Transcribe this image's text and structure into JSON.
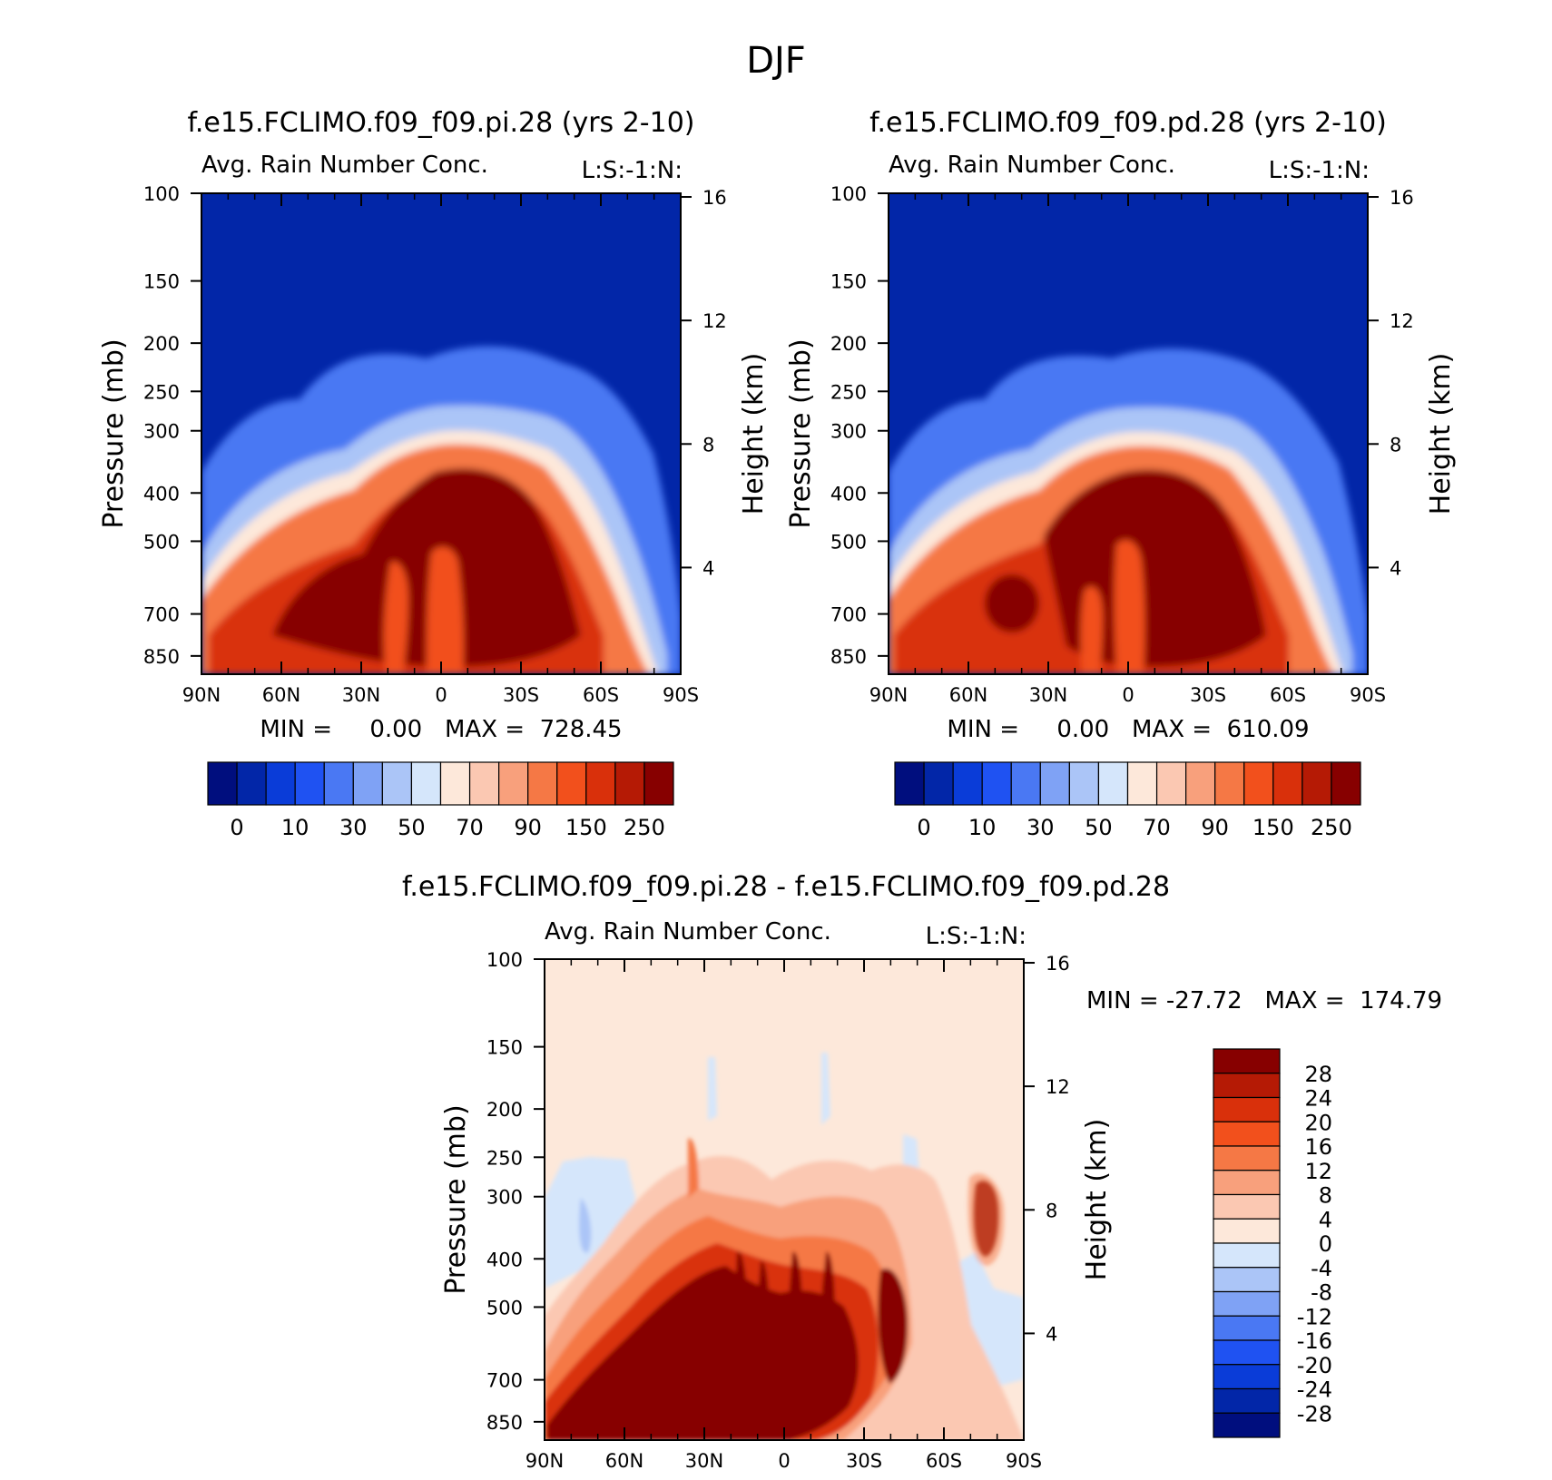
{
  "figure_title": "DJF",
  "chart_data": [
    {
      "type": "heatmap",
      "title": "f.e15.FCLIMO.f09_f09.pi.28 (yrs 2-10)",
      "subtitle_left": "Avg. Rain Number Conc.",
      "subtitle_right": "L:S:-1:N:",
      "ylabel": "Pressure (mb)",
      "ylabel_right": "Height (km)",
      "x_ticks": [
        "90N",
        "60N",
        "30N",
        "0",
        "30S",
        "60S",
        "90S"
      ],
      "y_ticks": [
        "100",
        "150",
        "200",
        "250",
        "300",
        "400",
        "500",
        "700",
        "850"
      ],
      "y_ticks_right": [
        "16",
        "12",
        "8",
        "4"
      ],
      "ylim": [
        100,
        925
      ],
      "stats": "MIN =     0.00   MAX =  728.45",
      "colorbar": {
        "orientation": "horizontal",
        "colors": [
          "#000e7e",
          "#0226a8",
          "#0a3cd8",
          "#1f52f2",
          "#4a78f3",
          "#7fa2f5",
          "#abc5f7",
          "#d5e6fb",
          "#fde8da",
          "#fbc8b2",
          "#f8a07c",
          "#f57845",
          "#f2501c",
          "#d9300b",
          "#b51a05",
          "#870000"
        ],
        "labels": [
          "0",
          "10",
          "30",
          "50",
          "70",
          "90",
          "150",
          "250"
        ]
      }
    },
    {
      "type": "heatmap",
      "title": "f.e15.FCLIMO.f09_f09.pd.28 (yrs 2-10)",
      "subtitle_left": "Avg. Rain Number Conc.",
      "subtitle_right": "L:S:-1:N:",
      "ylabel": "Pressure (mb)",
      "ylabel_right": "Height (km)",
      "x_ticks": [
        "90N",
        "60N",
        "30N",
        "0",
        "30S",
        "60S",
        "90S"
      ],
      "y_ticks": [
        "100",
        "150",
        "200",
        "250",
        "300",
        "400",
        "500",
        "700",
        "850"
      ],
      "y_ticks_right": [
        "16",
        "12",
        "8",
        "4"
      ],
      "ylim": [
        100,
        925
      ],
      "stats": "MIN =     0.00   MAX =  610.09",
      "colorbar": {
        "orientation": "horizontal",
        "colors": [
          "#000e7e",
          "#0226a8",
          "#0a3cd8",
          "#1f52f2",
          "#4a78f3",
          "#7fa2f5",
          "#abc5f7",
          "#d5e6fb",
          "#fde8da",
          "#fbc8b2",
          "#f8a07c",
          "#f57845",
          "#f2501c",
          "#d9300b",
          "#b51a05",
          "#870000"
        ],
        "labels": [
          "0",
          "10",
          "30",
          "50",
          "70",
          "90",
          "150",
          "250"
        ]
      }
    },
    {
      "type": "heatmap",
      "title": "f.e15.FCLIMO.f09_f09.pi.28 - f.e15.FCLIMO.f09_f09.pd.28",
      "subtitle_left": "Avg. Rain Number Conc.",
      "subtitle_right": "L:S:-1:N:",
      "ylabel": "Pressure (mb)",
      "ylabel_right": "Height (km)",
      "x_ticks": [
        "90N",
        "60N",
        "30N",
        "0",
        "30S",
        "60S",
        "90S"
      ],
      "y_ticks": [
        "100",
        "150",
        "200",
        "250",
        "300",
        "400",
        "500",
        "700",
        "850"
      ],
      "y_ticks_right": [
        "16",
        "12",
        "8",
        "4"
      ],
      "ylim": [
        100,
        925
      ],
      "stats": "MIN = -27.72   MAX =  174.79",
      "colorbar": {
        "orientation": "vertical",
        "colors": [
          "#870000",
          "#b51a05",
          "#d9300b",
          "#f2501c",
          "#f57845",
          "#f8a07c",
          "#fbc8b2",
          "#fde8da",
          "#d5e6fb",
          "#abc5f7",
          "#7fa2f5",
          "#4a78f3",
          "#1f52f2",
          "#0a3cd8",
          "#0226a8",
          "#000e7e"
        ],
        "labels": [
          "28",
          "24",
          "20",
          "16",
          "12",
          "8",
          "4",
          "0",
          "-4",
          "-8",
          "-12",
          "-16",
          "-20",
          "-24",
          "-28"
        ]
      }
    }
  ]
}
